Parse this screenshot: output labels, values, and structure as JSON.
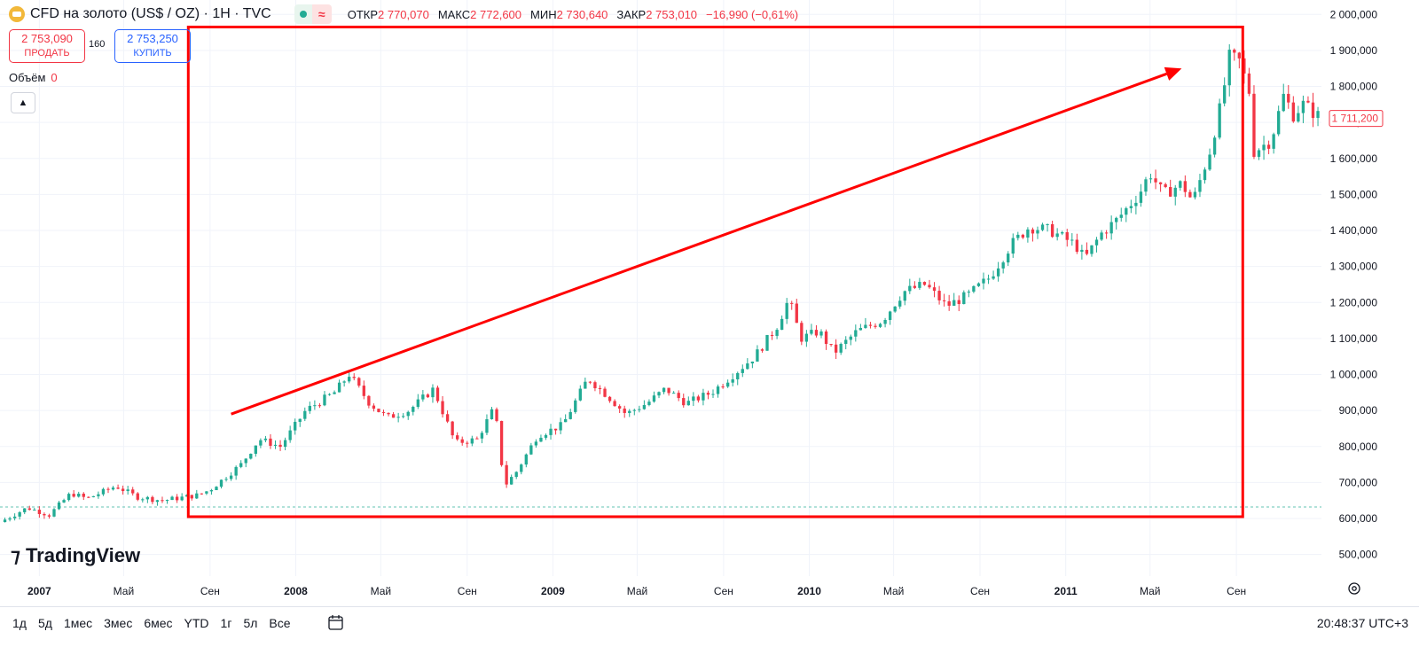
{
  "header": {
    "title": "CFD на золото (US$ / OZ) · 1H · TVC",
    "ohlc": [
      {
        "key": "ОТКР",
        "value": "2 770,070"
      },
      {
        "key": "МАКС",
        "value": "2 772,600"
      },
      {
        "key": "МИН",
        "value": "2 730,640"
      },
      {
        "key": "ЗАКР",
        "value": "2 753,010"
      },
      {
        "key": "",
        "value": "−16,990 (−0,61%)"
      }
    ]
  },
  "trade": {
    "sell_price": "2 753,090",
    "sell_label": "ПРОДАТЬ",
    "spread": "160",
    "buy_price": "2 753,250",
    "buy_label": "КУПИТЬ"
  },
  "volume": {
    "label": "Объём",
    "value": "0"
  },
  "brand": "TradingView",
  "periods": [
    "1д",
    "5д",
    "1мес",
    "3мес",
    "6мес",
    "YTD",
    "1г",
    "5л",
    "Все"
  ],
  "clock": "20:48:37 UTC+3",
  "colors": {
    "up": "#22ab94",
    "down": "#f23645",
    "annotation": "#ff0000",
    "grid": "#f0f3fa"
  },
  "chart_data": {
    "type": "candlestick",
    "last_price_label": "1 711,200",
    "y_axis_ticks": [
      "500,000",
      "600,000",
      "700,000",
      "800,000",
      "900,000",
      "1 000,000",
      "1 100,000",
      "1 200,000",
      "1 300,000",
      "1 400,000",
      "1 500,000",
      "1 600,000",
      "1 700,000",
      "1 800,000",
      "1 900,000",
      "2 000,000"
    ],
    "ylim": [
      440,
      2040
    ],
    "xlim": [
      "2006-11-06",
      "2011-12-31"
    ],
    "x_axis_ticks": [
      {
        "label": "2007",
        "date": "2007-01-01"
      },
      {
        "label": "Май",
        "date": "2007-05-01"
      },
      {
        "label": "Сен",
        "date": "2007-09-01"
      },
      {
        "label": "2008",
        "date": "2008-01-01"
      },
      {
        "label": "Май",
        "date": "2008-05-01"
      },
      {
        "label": "Сен",
        "date": "2008-09-01"
      },
      {
        "label": "2009",
        "date": "2009-01-01"
      },
      {
        "label": "Май",
        "date": "2009-05-01"
      },
      {
        "label": "Сен",
        "date": "2009-09-01"
      },
      {
        "label": "2010",
        "date": "2010-01-01"
      },
      {
        "label": "Май",
        "date": "2010-05-01"
      },
      {
        "label": "Сен",
        "date": "2010-09-01"
      },
      {
        "label": "2011",
        "date": "2011-01-01"
      },
      {
        "label": "Май",
        "date": "2011-05-01"
      },
      {
        "label": "Сен",
        "date": "2011-09-01"
      }
    ],
    "close_series": [
      {
        "date": "2006-11-06",
        "close": 590
      },
      {
        "date": "2006-12-15",
        "close": 630
      },
      {
        "date": "2007-01-15",
        "close": 610
      },
      {
        "date": "2007-02-15",
        "close": 670
      },
      {
        "date": "2007-03-10",
        "close": 655
      },
      {
        "date": "2007-04-20",
        "close": 690
      },
      {
        "date": "2007-05-20",
        "close": 660
      },
      {
        "date": "2007-06-25",
        "close": 650
      },
      {
        "date": "2007-08-15",
        "close": 665
      },
      {
        "date": "2007-09-01",
        "close": 680
      },
      {
        "date": "2007-10-15",
        "close": 750
      },
      {
        "date": "2007-11-10",
        "close": 820
      },
      {
        "date": "2007-12-10",
        "close": 800
      },
      {
        "date": "2008-01-15",
        "close": 900
      },
      {
        "date": "2008-02-25",
        "close": 950
      },
      {
        "date": "2008-03-17",
        "close": 1000
      },
      {
        "date": "2008-04-15",
        "close": 920
      },
      {
        "date": "2008-05-10",
        "close": 880
      },
      {
        "date": "2008-06-10",
        "close": 900
      },
      {
        "date": "2008-07-15",
        "close": 960
      },
      {
        "date": "2008-08-15",
        "close": 810
      },
      {
        "date": "2008-09-15",
        "close": 820
      },
      {
        "date": "2008-10-10",
        "close": 910
      },
      {
        "date": "2008-10-24",
        "close": 690
      },
      {
        "date": "2008-11-10",
        "close": 730
      },
      {
        "date": "2008-12-10",
        "close": 830
      },
      {
        "date": "2009-01-15",
        "close": 860
      },
      {
        "date": "2009-02-20",
        "close": 990
      },
      {
        "date": "2009-03-20",
        "close": 940
      },
      {
        "date": "2009-04-15",
        "close": 890
      },
      {
        "date": "2009-05-15",
        "close": 920
      },
      {
        "date": "2009-06-10",
        "close": 960
      },
      {
        "date": "2009-07-10",
        "close": 920
      },
      {
        "date": "2009-08-15",
        "close": 950
      },
      {
        "date": "2009-09-15",
        "close": 1000
      },
      {
        "date": "2009-10-15",
        "close": 1050
      },
      {
        "date": "2009-11-15",
        "close": 1130
      },
      {
        "date": "2009-12-03",
        "close": 1210
      },
      {
        "date": "2009-12-20",
        "close": 1100
      },
      {
        "date": "2010-01-15",
        "close": 1120
      },
      {
        "date": "2010-02-05",
        "close": 1060
      },
      {
        "date": "2010-03-10",
        "close": 1120
      },
      {
        "date": "2010-04-15",
        "close": 1150
      },
      {
        "date": "2010-05-15",
        "close": 1230
      },
      {
        "date": "2010-06-15",
        "close": 1250
      },
      {
        "date": "2010-07-15",
        "close": 1190
      },
      {
        "date": "2010-08-15",
        "close": 1220
      },
      {
        "date": "2010-09-15",
        "close": 1270
      },
      {
        "date": "2010-10-15",
        "close": 1360
      },
      {
        "date": "2010-11-10",
        "close": 1410
      },
      {
        "date": "2010-12-10",
        "close": 1400
      },
      {
        "date": "2011-01-15",
        "close": 1360
      },
      {
        "date": "2011-01-28",
        "close": 1320
      },
      {
        "date": "2011-02-20",
        "close": 1390
      },
      {
        "date": "2011-03-15",
        "close": 1430
      },
      {
        "date": "2011-04-15",
        "close": 1500
      },
      {
        "date": "2011-05-01",
        "close": 1560
      },
      {
        "date": "2011-05-20",
        "close": 1500
      },
      {
        "date": "2011-06-15",
        "close": 1530
      },
      {
        "date": "2011-07-01",
        "close": 1480
      },
      {
        "date": "2011-07-25",
        "close": 1620
      },
      {
        "date": "2011-08-10",
        "close": 1750
      },
      {
        "date": "2011-08-22",
        "close": 1880
      },
      {
        "date": "2011-09-05",
        "close": 1870
      },
      {
        "date": "2011-09-20",
        "close": 1780
      },
      {
        "date": "2011-09-26",
        "close": 1620
      },
      {
        "date": "2011-10-20",
        "close": 1650
      },
      {
        "date": "2011-11-08",
        "close": 1780
      },
      {
        "date": "2011-11-20",
        "close": 1720
      },
      {
        "date": "2011-12-05",
        "close": 1750
      },
      {
        "date": "2011-12-31",
        "close": 1711
      }
    ],
    "reference_line": 632,
    "annotations": [
      {
        "type": "rectangle",
        "from_date": "2007-08-01",
        "to_date": "2011-09-10",
        "low": 605,
        "high": 1965
      },
      {
        "type": "arrow",
        "from_date": "2007-10-01",
        "from_value": 890,
        "to_date": "2011-06-15",
        "to_value": 1850
      }
    ]
  }
}
